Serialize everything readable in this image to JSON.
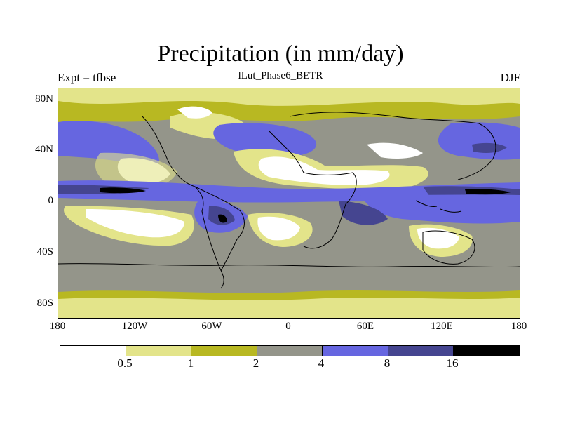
{
  "header": {
    "title": "Precipitation (in mm/day)",
    "left": "Expt = tfbse",
    "center": "lLut_Phase6_BETR",
    "right": "DJF"
  },
  "axes": {
    "y_ticks": [
      "80N",
      "40N",
      "0",
      "40S",
      "80S"
    ],
    "x_ticks": [
      "180",
      "120W",
      "60W",
      "0",
      "60E",
      "120E",
      "180"
    ]
  },
  "legend": {
    "levels": [
      "0.5",
      "1",
      "2",
      "4",
      "8",
      "16"
    ],
    "colors": [
      "#ffffff",
      "#e3e48a",
      "#b8b822",
      "#94958a",
      "#6666e0",
      "#454590",
      "#000000"
    ]
  }
}
